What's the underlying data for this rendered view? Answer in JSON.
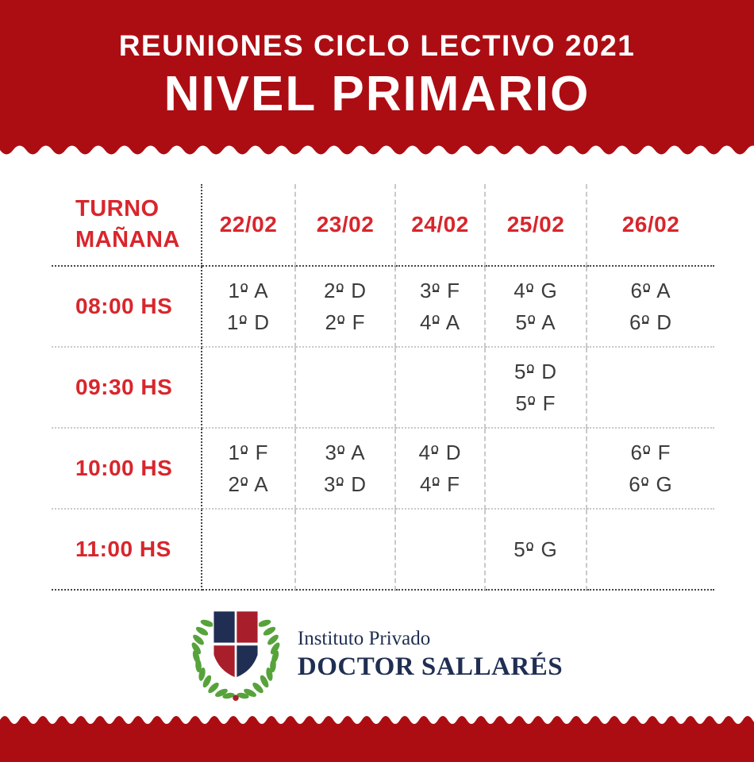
{
  "header": {
    "title": "REUNIONES CICLO LECTIVO 2021",
    "subtitle": "NIVEL PRIMARIO"
  },
  "table": {
    "corner_lines": [
      "TURNO",
      "MAÑANA"
    ],
    "date_headers": [
      "22/02",
      "23/02",
      "24/02",
      "25/02",
      "26/02"
    ],
    "rows": [
      {
        "time": "08:00 HS",
        "cells": [
          [
            "1º A",
            "1º D"
          ],
          [
            "2º D",
            "2º F"
          ],
          [
            "3º F",
            "4º A"
          ],
          [
            "4º G",
            "5º A"
          ],
          [
            "6º A",
            "6º D"
          ]
        ]
      },
      {
        "time": "09:30 HS",
        "cells": [
          [],
          [],
          [],
          [
            "5º D",
            "5º F"
          ],
          []
        ]
      },
      {
        "time": "10:00 HS",
        "cells": [
          [
            "1º F",
            "2º A"
          ],
          [
            "3º A",
            "3º D"
          ],
          [
            "4º D",
            "4º F"
          ],
          [],
          [
            "6º F",
            "6º G"
          ]
        ]
      },
      {
        "time": "11:00 HS",
        "cells": [
          [],
          [],
          [],
          [
            "5º G"
          ],
          []
        ]
      }
    ]
  },
  "logo": {
    "org_type": "Instituto Privado",
    "org_name": "DOCTOR SALLARÉS"
  },
  "colors": {
    "band_red": "#AC0D13",
    "accent_red": "#D8262C",
    "text_dark": "#3C3C3C",
    "navy": "#1F2E52",
    "shield_red": "#A81E2A",
    "laurel_green": "#57A33B",
    "line_dark": "#454545",
    "line_light": "#C9C9C9"
  }
}
